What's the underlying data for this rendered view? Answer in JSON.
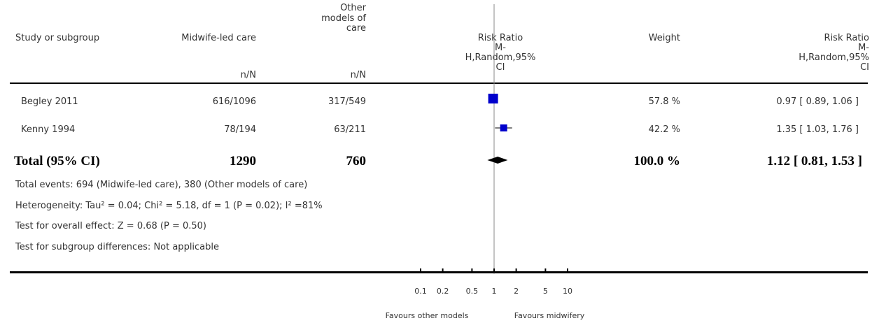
{
  "header": {
    "study": "Study or subgroup",
    "group1": "Midwife-led care",
    "group1_sub": "n/N",
    "group2_l1": "Other",
    "group2_l2": "models of",
    "group2_l3": "care",
    "group2_sub": "n/N",
    "rr_l1": "Risk Ratio",
    "rr_l2": "M-",
    "rr_l3": "H,Random,95%",
    "rr_l4": "CI",
    "weight": "Weight",
    "rr2_l1": "Risk Ratio",
    "rr2_l2": "M-",
    "rr2_l3": "H,Random,95%",
    "rr2_l4": "CI"
  },
  "rows": [
    {
      "study": "Begley 2011",
      "g1": "616/1096",
      "g2": "317/549",
      "weight": "57.8 %",
      "ci": "0.97 [ 0.89, 1.06 ]"
    },
    {
      "study": "Kenny 1994",
      "g1": "78/194",
      "g2": "63/211",
      "weight": "42.2 %",
      "ci": "1.35 [ 1.03, 1.76 ]"
    }
  ],
  "total": {
    "label": "Total (95% CI)",
    "g1": "1290",
    "g2": "760",
    "weight": "100.0 %",
    "ci": "1.12 [ 0.81, 1.53 ]"
  },
  "footnotes": {
    "events": "Total events: 694 (Midwife-led care), 380 (Other models of care)",
    "heterogeneity": "Heterogeneity: Tau² = 0.04; Chi² = 5.18, df = 1 (P = 0.02); I² =81%",
    "overall": "Test for overall effect: Z = 0.68 (P = 0.50)",
    "subgroup": "Test for subgroup differences: Not applicable"
  },
  "axis": {
    "ticks": [
      "0.1",
      "0.2",
      "0.5",
      "1",
      "2",
      "5",
      "10"
    ],
    "left_label": "Favours other models",
    "right_label": "Favours midwifery"
  },
  "colors": {
    "marker": "#0000cc",
    "line": "#000000",
    "text": "#333333"
  },
  "chart_data": {
    "type": "scatter",
    "scale": "log",
    "xlim": [
      0.1,
      10
    ],
    "tick_values": [
      0.1,
      0.2,
      0.5,
      1,
      2,
      5,
      10
    ],
    "studies": [
      {
        "name": "Begley 2011",
        "rr": 0.97,
        "lo": 0.89,
        "hi": 1.06,
        "weight": 57.8
      },
      {
        "name": "Kenny 1994",
        "rr": 1.35,
        "lo": 1.03,
        "hi": 1.76,
        "weight": 42.2
      }
    ],
    "pooled": {
      "rr": 1.12,
      "lo": 0.81,
      "hi": 1.53
    }
  }
}
